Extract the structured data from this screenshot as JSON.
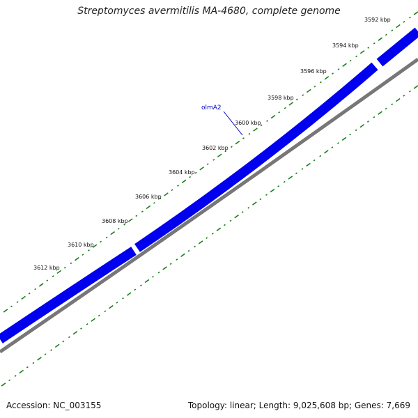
{
  "title": "Streptomyces avermitilis MA-4680, complete genome",
  "accession": "Accession: NC_003155",
  "summary": "Topology: linear; Length: 9,025,608 bp; Genes: 7,669",
  "colors": {
    "gene": "#0000ee",
    "gene_dark": "#000099",
    "backbone": "#777777",
    "ticks": "#1a7f1a",
    "label": "#0000cc"
  },
  "scale_labels": [
    "3592 kbp",
    "3594 kbp",
    "3596 kbp",
    "3598 kbp",
    "3600 kbp",
    "3602 kbp",
    "3604 kbp",
    "3606 kbp",
    "3608 kbp",
    "3610 kbp",
    "3612 kbp"
  ],
  "gene": {
    "name": "olmA2"
  }
}
